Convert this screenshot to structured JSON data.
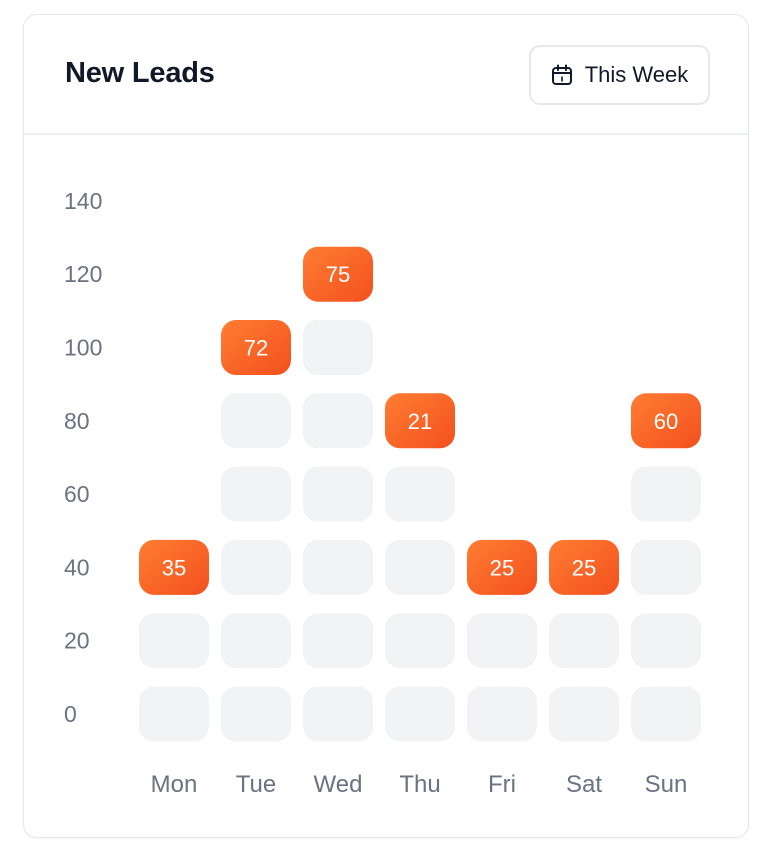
{
  "card": {
    "title": "New Leads",
    "period_label": "This Week"
  },
  "icons": {
    "period": "calendar-icon"
  },
  "colors": {
    "accent_start": "#ff7a2f",
    "accent_end": "#f4511e",
    "cell_empty": "#f2f3f5",
    "axis_text": "#6b7280",
    "title": "#111827"
  },
  "chart_data": {
    "type": "bar",
    "categories": [
      "Mon",
      "Tue",
      "Wed",
      "Thu",
      "Fri",
      "Sat",
      "Sun"
    ],
    "values": [
      35,
      72,
      75,
      21,
      25,
      25,
      60
    ],
    "filled_level": [
      40,
      100,
      120,
      80,
      40,
      40,
      80
    ],
    "yticks": [
      0,
      20,
      40,
      60,
      80,
      100,
      120,
      140
    ],
    "ylim": [
      0,
      140
    ],
    "title": "",
    "xlabel": "",
    "ylabel": ""
  }
}
